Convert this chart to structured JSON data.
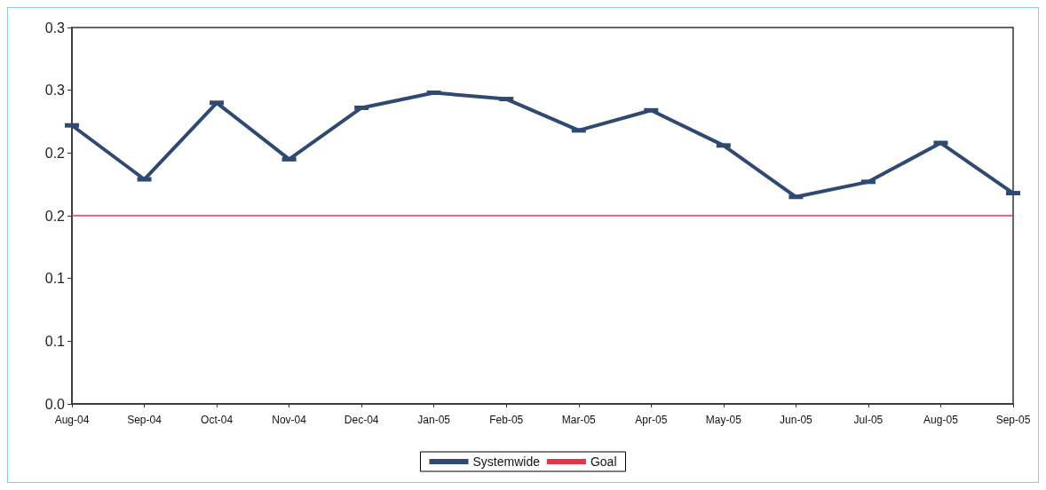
{
  "chart_data": {
    "type": "line",
    "categories": [
      "Aug-04",
      "Sep-04",
      "Oct-04",
      "Nov-04",
      "Dec-04",
      "Jan-05",
      "Feb-05",
      "Mar-05",
      "Apr-05",
      "May-05",
      "Jun-05",
      "Jul-05",
      "Aug-05",
      "Sep-05"
    ],
    "series": [
      {
        "name": "Systemwide",
        "color": "#2e4a72",
        "marker": "square",
        "values": [
          0.222,
          0.179,
          0.24,
          0.195,
          0.236,
          0.248,
          0.243,
          0.218,
          0.234,
          0.206,
          0.165,
          0.177,
          0.208,
          0.168
        ]
      },
      {
        "name": "Goal",
        "color": "#e8334a",
        "marker": "none",
        "values": [
          0.15,
          0.15,
          0.15,
          0.15,
          0.15,
          0.15,
          0.15,
          0.15,
          0.15,
          0.15,
          0.15,
          0.15,
          0.15,
          0.15
        ]
      }
    ],
    "ylim": [
      0,
      0.3
    ],
    "yticks": [
      {
        "value": 0,
        "label": "0.0"
      },
      {
        "value": 0.05,
        "label": "0.1"
      },
      {
        "value": 0.1,
        "label": "0.1"
      },
      {
        "value": 0.15,
        "label": "0.2"
      },
      {
        "value": 0.2,
        "label": "0.2"
      },
      {
        "value": 0.25,
        "label": "0.3"
      },
      {
        "value": 0.3,
        "label": "0.3"
      }
    ],
    "grid": false,
    "legend": "bottom"
  }
}
